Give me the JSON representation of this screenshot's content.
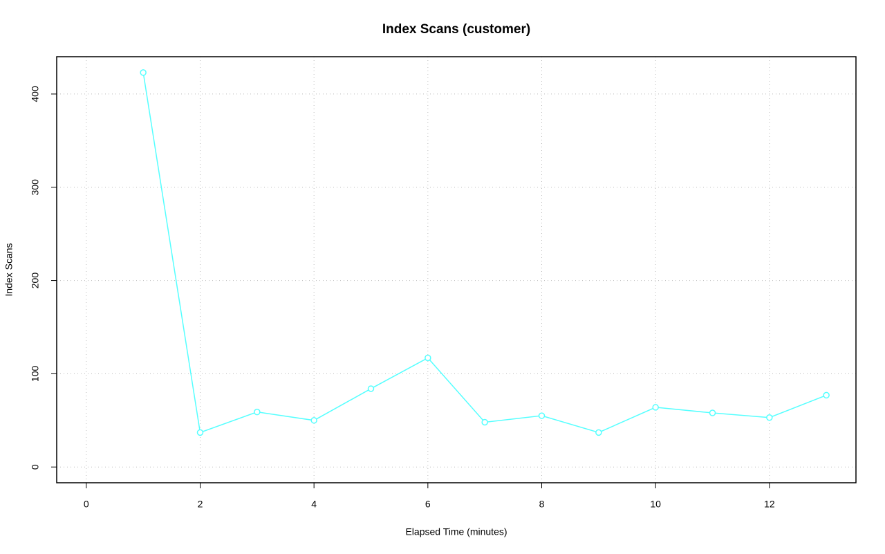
{
  "chart_data": {
    "type": "line",
    "title": "Index Scans (customer)",
    "x_label": "Elapsed Time (minutes)",
    "y_label": "Index Scans",
    "x": [
      1,
      2,
      3,
      4,
      5,
      6,
      7,
      8,
      9,
      10,
      11,
      12,
      13
    ],
    "series": [
      {
        "color": "#55ffff",
        "values": [
          423,
          37,
          59,
          50,
          84,
          117,
          48,
          55,
          37,
          64,
          58,
          53,
          77
        ]
      }
    ],
    "xlim": [
      -0.52,
      13.52
    ],
    "xticks": [
      0,
      2,
      4,
      6,
      8,
      10,
      12
    ],
    "ylim": [
      -16.9,
      440
    ],
    "yticks": [
      0,
      100,
      200,
      300,
      400
    ],
    "grid": true
  }
}
